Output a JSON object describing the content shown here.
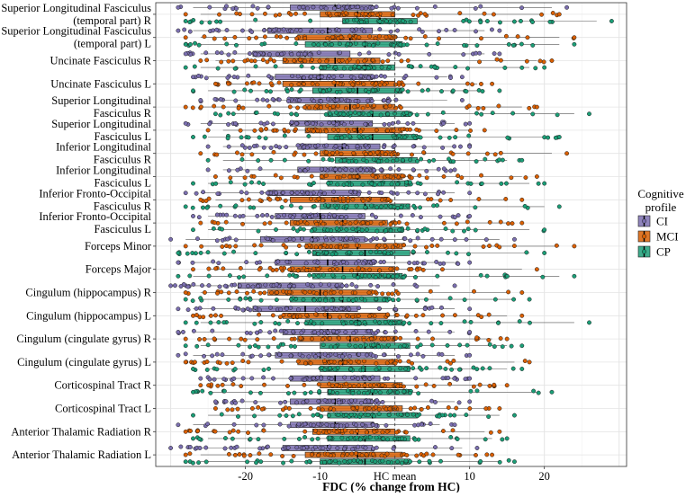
{
  "chart_data": {
    "type": "boxplot",
    "title": "",
    "xlabel": "FDC (% change from HC)",
    "ylabel": "",
    "xlim": [
      -32,
      31
    ],
    "x_ticks": [
      {
        "value": -20,
        "label": "-20"
      },
      {
        "value": -10,
        "label": "-10"
      },
      {
        "value": 0,
        "label": "HC mean"
      },
      {
        "value": 10,
        "label": "10"
      },
      {
        "value": 20,
        "label": "20"
      }
    ],
    "reference_line": {
      "x": 0,
      "style": "dashed"
    },
    "grid": true,
    "legend": {
      "title_lines": [
        "Cognitive",
        "profile"
      ],
      "position": "right",
      "entries": [
        "CI",
        "MCI",
        "CP"
      ]
    },
    "series": [
      {
        "name": "CI",
        "color": "#7B6FB0"
      },
      {
        "name": "MCI",
        "color": "#D95F02"
      },
      {
        "name": "CP",
        "color": "#1B9E77"
      }
    ],
    "tracts": [
      {
        "label_lines": [
          "Superior Longitudinal Fasciculus",
          "(temporal part) R"
        ],
        "boxes": {
          "CI": {
            "q1": -14,
            "median": -8,
            "q3": -3,
            "min": -29,
            "max": 23
          },
          "MCI": {
            "q1": -10,
            "median": -5,
            "q3": 0,
            "min": -28,
            "max": 22
          },
          "CP": {
            "q1": -7,
            "median": -2,
            "q3": 3,
            "min": -28,
            "max": 29
          }
        }
      },
      {
        "label_lines": [
          "Superior Longitudinal Fasciculus",
          "(temporal part) L"
        ],
        "boxes": {
          "CI": {
            "q1": -17,
            "median": -9,
            "q3": -3,
            "min": -29,
            "max": 14
          },
          "MCI": {
            "q1": -13,
            "median": -6,
            "q3": 0,
            "min": -28,
            "max": 24
          },
          "CP": {
            "q1": -12,
            "median": -4,
            "q3": 1,
            "min": -28,
            "max": 24
          }
        }
      },
      {
        "label_lines": [
          "Uncinate Fasciculus R"
        ],
        "boxes": {
          "CI": {
            "q1": -19,
            "median": -12,
            "q3": -6,
            "min": -28,
            "max": 14
          },
          "MCI": {
            "q1": -15,
            "median": -8,
            "q3": -2,
            "min": -26,
            "max": 21
          },
          "CP": {
            "q1": -10,
            "median": -4,
            "q3": 0,
            "min": -28,
            "max": 20
          }
        }
      },
      {
        "label_lines": [
          "Uncinate Fasciculus L"
        ],
        "boxes": {
          "CI": {
            "q1": -16,
            "median": -10,
            "q3": -3,
            "min": -27,
            "max": 9
          },
          "MCI": {
            "q1": -15,
            "median": -8,
            "q3": 0,
            "min": -24,
            "max": 13
          },
          "CP": {
            "q1": -11,
            "median": -5,
            "q3": 1,
            "min": -27,
            "max": 14
          }
        }
      },
      {
        "label_lines": [
          "Superior Longitudinal",
          "Fasciculus R"
        ],
        "boxes": {
          "CI": {
            "q1": -14,
            "median": -8,
            "q3": -3,
            "min": -26,
            "max": 9
          },
          "MCI": {
            "q1": -12,
            "median": -6,
            "q3": 0,
            "min": -28,
            "max": 19
          },
          "CP": {
            "q1": -9,
            "median": -3,
            "q3": 2,
            "min": -24,
            "max": 26
          }
        }
      },
      {
        "label_lines": [
          "Superior Longitudinal",
          "Fasciculus L"
        ],
        "boxes": {
          "CI": {
            "q1": -14,
            "median": -8,
            "q3": -3,
            "min": -28,
            "max": 10
          },
          "MCI": {
            "q1": -12,
            "median": -5,
            "q3": 1,
            "min": -25,
            "max": 12
          },
          "CP": {
            "q1": -9,
            "median": -3,
            "q3": 3,
            "min": -27,
            "max": 22
          }
        }
      },
      {
        "label_lines": [
          "Inferior Longitudinal",
          "Fasciculus R"
        ],
        "boxes": {
          "CI": {
            "q1": -13,
            "median": -7,
            "q3": -2,
            "min": -25,
            "max": 10
          },
          "MCI": {
            "q1": -10,
            "median": -4,
            "q3": 0,
            "min": -26,
            "max": 23
          },
          "CP": {
            "q1": -8,
            "median": -2,
            "q3": 3,
            "min": -25,
            "max": 17
          }
        }
      },
      {
        "label_lines": [
          "Inferior Longitudinal",
          "Fasciculus L"
        ],
        "boxes": {
          "CI": {
            "q1": -13,
            "median": -8,
            "q3": -3,
            "min": -25,
            "max": 8
          },
          "MCI": {
            "q1": -10,
            "median": -5,
            "q3": 1,
            "min": -24,
            "max": 19
          },
          "CP": {
            "q1": -9,
            "median": -3,
            "q3": 2,
            "min": -27,
            "max": 20
          }
        }
      },
      {
        "label_lines": [
          "Inferior Fronto-Occipital",
          "Fasciculus R"
        ],
        "boxes": {
          "CI": {
            "q1": -17,
            "median": -10,
            "q3": -5,
            "min": -28,
            "max": 10
          },
          "MCI": {
            "q1": -14,
            "median": -7,
            "q3": -1,
            "min": -26,
            "max": 17
          },
          "CP": {
            "q1": -10,
            "median": -4,
            "q3": 2,
            "min": -28,
            "max": 22
          }
        }
      },
      {
        "label_lines": [
          "Inferior Fronto-Occipital",
          "Fasciculus L"
        ],
        "boxes": {
          "CI": {
            "q1": -16,
            "median": -10,
            "q3": -4,
            "min": -27,
            "max": 10
          },
          "MCI": {
            "q1": -14,
            "median": -7,
            "q3": -1,
            "min": -26,
            "max": 17
          },
          "CP": {
            "q1": -11,
            "median": -5,
            "q3": 1,
            "min": -27,
            "max": 20
          }
        }
      },
      {
        "label_lines": [
          "Forceps Minor"
        ],
        "boxes": {
          "CI": {
            "q1": -18,
            "median": -11,
            "q3": -4,
            "min": -30,
            "max": 16
          },
          "MCI": {
            "q1": -12,
            "median": -5,
            "q3": 1,
            "min": -28,
            "max": 24
          },
          "CP": {
            "q1": -11,
            "median": -4,
            "q3": 2,
            "min": -29,
            "max": 20
          }
        }
      },
      {
        "label_lines": [
          "Forceps Major"
        ],
        "boxes": {
          "CI": {
            "q1": -16,
            "median": -9,
            "q3": -3,
            "min": -29,
            "max": 10
          },
          "MCI": {
            "q1": -14,
            "median": -7,
            "q3": 0,
            "min": -27,
            "max": 19
          },
          "CP": {
            "q1": -11,
            "median": -5,
            "q3": 1,
            "min": -29,
            "max": 24
          }
        }
      },
      {
        "label_lines": [
          "Cingulum (hippocampus) R"
        ],
        "boxes": {
          "CI": {
            "q1": -21,
            "median": -14,
            "q3": -7,
            "min": -30,
            "max": 8
          },
          "MCI": {
            "q1": -17,
            "median": -10,
            "q3": -3,
            "min": -28,
            "max": 17
          },
          "CP": {
            "q1": -14,
            "median": -7,
            "q3": -1,
            "min": -28,
            "max": 18
          }
        }
      },
      {
        "label_lines": [
          "Cingulum (hippocampus) L"
        ],
        "boxes": {
          "CI": {
            "q1": -19,
            "median": -12,
            "q3": -5,
            "min": -29,
            "max": 10
          },
          "MCI": {
            "q1": -15,
            "median": -9,
            "q3": -1,
            "min": -27,
            "max": 17
          },
          "CP": {
            "q1": -12,
            "median": -5,
            "q3": 1,
            "min": -28,
            "max": 26
          }
        }
      },
      {
        "label_lines": [
          "Cingulum (cingulate gyrus) R"
        ],
        "boxes": {
          "CI": {
            "q1": -15,
            "median": -9,
            "q3": -3,
            "min": -29,
            "max": 10
          },
          "MCI": {
            "q1": -13,
            "median": -6,
            "q3": 0,
            "min": -28,
            "max": 15
          },
          "CP": {
            "q1": -10,
            "median": -4,
            "q3": 2,
            "min": -28,
            "max": 17
          }
        }
      },
      {
        "label_lines": [
          "Cingulum (cingulate gyrus) L"
        ],
        "boxes": {
          "CI": {
            "q1": -16,
            "median": -10,
            "q3": -3,
            "min": -29,
            "max": 10
          },
          "MCI": {
            "q1": -13,
            "median": -7,
            "q3": 0,
            "min": -28,
            "max": 18
          },
          "CP": {
            "q1": -10,
            "median": -4,
            "q3": 2,
            "min": -27,
            "max": 17
          }
        }
      },
      {
        "label_lines": [
          "Corticospinal Tract R"
        ],
        "boxes": {
          "CI": {
            "q1": -14,
            "median": -8,
            "q3": -2,
            "min": -26,
            "max": 10
          },
          "MCI": {
            "q1": -10,
            "median": -4,
            "q3": 1,
            "min": -26,
            "max": 15
          },
          "CP": {
            "q1": -9,
            "median": -3,
            "q3": 2,
            "min": -27,
            "max": 21
          }
        }
      },
      {
        "label_lines": [
          "Corticospinal Tract L"
        ],
        "boxes": {
          "CI": {
            "q1": -14,
            "median": -8,
            "q3": -3,
            "min": -24,
            "max": 10
          },
          "MCI": {
            "q1": -10,
            "median": -5,
            "q3": 1,
            "min": -24,
            "max": 14
          },
          "CP": {
            "q1": -9,
            "median": -3,
            "q3": 3,
            "min": -27,
            "max": 16
          }
        }
      },
      {
        "label_lines": [
          "Anterior Thalamic Radiation R"
        ],
        "boxes": {
          "CI": {
            "q1": -14,
            "median": -8,
            "q3": -3,
            "min": -29,
            "max": 8
          },
          "MCI": {
            "q1": -11,
            "median": -5,
            "q3": 0,
            "min": -28,
            "max": 14
          },
          "CP": {
            "q1": -9,
            "median": -4,
            "q3": 2,
            "min": -27,
            "max": 15
          }
        }
      },
      {
        "label_lines": [
          "Anterior Thalamic Radiation L"
        ],
        "boxes": {
          "CI": {
            "q1": -15,
            "median": -9,
            "q3": -3,
            "min": -30,
            "max": 11
          },
          "MCI": {
            "q1": -12,
            "median": -5,
            "q3": 1,
            "min": -28,
            "max": 13
          },
          "CP": {
            "q1": -10,
            "median": -4,
            "q3": 2,
            "min": -28,
            "max": 16
          }
        }
      }
    ]
  }
}
